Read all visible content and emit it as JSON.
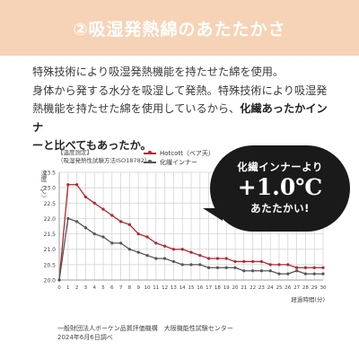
{
  "header": {
    "title": "②吸湿発熱綿のあたたかさ"
  },
  "intro": {
    "line1": "特殊技術により吸湿発熱機能を持たせた綿を使用。",
    "line2": "身体から発する水分を吸湿して発熱。特殊技術により吸湿発",
    "line3_plain": "熱機能を持たせた綿を使用しているから、",
    "line3_em": "化繊あったかインナ",
    "line4_em": "ーと比べてもあったか。"
  },
  "legend": {
    "title": "【温度測定】",
    "method": "（吸湿発熱性試験方法ISO18782）",
    "series_hotcott": "Hotcott（ベア天）",
    "series_synthetic": "化繊インナー"
  },
  "bubble": {
    "line1": "化繊インナーより",
    "line2": "+1.0℃",
    "line3": "あたたかい!"
  },
  "source": {
    "line1": "一般財団法人ボーケン品質評価機構　大阪機能性試験センター",
    "line2": "2024年6月6日調べ"
  },
  "colors": {
    "header": "#f6d3b6",
    "hotcott": "#b3262d",
    "synthetic": "#555555",
    "bubble": "#1a1a1a"
  },
  "chart_data": {
    "type": "line",
    "title": "",
    "ylabel": "温度（℃）",
    "xlabel": "経過時間(分)",
    "ylim": [
      20.0,
      23.5
    ],
    "xlim": [
      0,
      30
    ],
    "grid": true,
    "x": [
      0,
      1,
      2,
      3,
      4,
      5,
      6,
      7,
      8,
      9,
      10,
      11,
      12,
      13,
      14,
      15,
      16,
      17,
      18,
      19,
      20,
      21,
      22,
      23,
      24,
      25,
      26,
      27,
      28,
      29,
      30
    ],
    "series": [
      {
        "name": "Hotcott（ベア天）",
        "color": "#b3262d",
        "values": [
          20.0,
          23.1,
          23.1,
          22.7,
          22.5,
          22.3,
          22.1,
          21.9,
          21.8,
          21.5,
          21.4,
          21.2,
          21.1,
          21.0,
          21.0,
          20.9,
          20.8,
          20.7,
          20.7,
          20.7,
          20.6,
          20.6,
          20.6,
          20.6,
          20.5,
          20.5,
          20.5,
          20.4,
          20.4,
          20.4,
          20.4
        ]
      },
      {
        "name": "化繊インナー",
        "color": "#555555",
        "values": [
          20.0,
          22.0,
          21.9,
          21.7,
          21.5,
          21.4,
          21.2,
          21.2,
          21.0,
          20.9,
          20.8,
          20.7,
          20.7,
          20.6,
          20.5,
          20.5,
          20.5,
          20.4,
          20.4,
          20.4,
          20.4,
          20.3,
          20.3,
          20.3,
          20.3,
          20.2,
          20.2,
          20.3,
          20.2,
          20.2,
          20.2
        ]
      }
    ],
    "yticks": [
      "20.0",
      "20.5",
      "21.0",
      "21.5",
      "22.0",
      "22.5",
      "23.0",
      "23.5"
    ],
    "xticks": [
      "0",
      "1",
      "2",
      "3",
      "4",
      "5",
      "6",
      "7",
      "8",
      "9",
      "10",
      "11",
      "12",
      "13",
      "14",
      "15",
      "16",
      "17",
      "18",
      "19",
      "20",
      "21",
      "22",
      "23",
      "24",
      "25",
      "26",
      "27",
      "28",
      "29",
      "30"
    ]
  }
}
